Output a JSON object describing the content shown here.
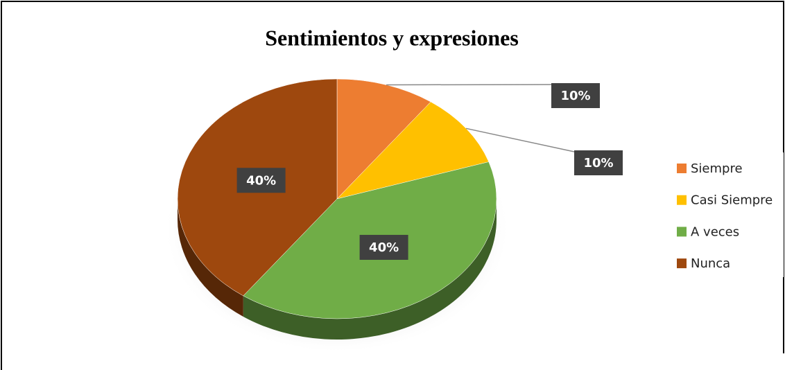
{
  "chart_data": {
    "type": "pie",
    "title": "Sentimientos y expresiones",
    "categories": [
      "Siempre",
      "Casi Siempre",
      "A veces",
      "Nunca"
    ],
    "values": [
      10,
      10,
      40,
      40
    ],
    "value_labels": [
      "10%",
      "10%",
      "40%",
      "40%"
    ],
    "colors": [
      "#ED7D31",
      "#FFC000",
      "#70AD47",
      "#9E480E"
    ],
    "legend": "right"
  }
}
